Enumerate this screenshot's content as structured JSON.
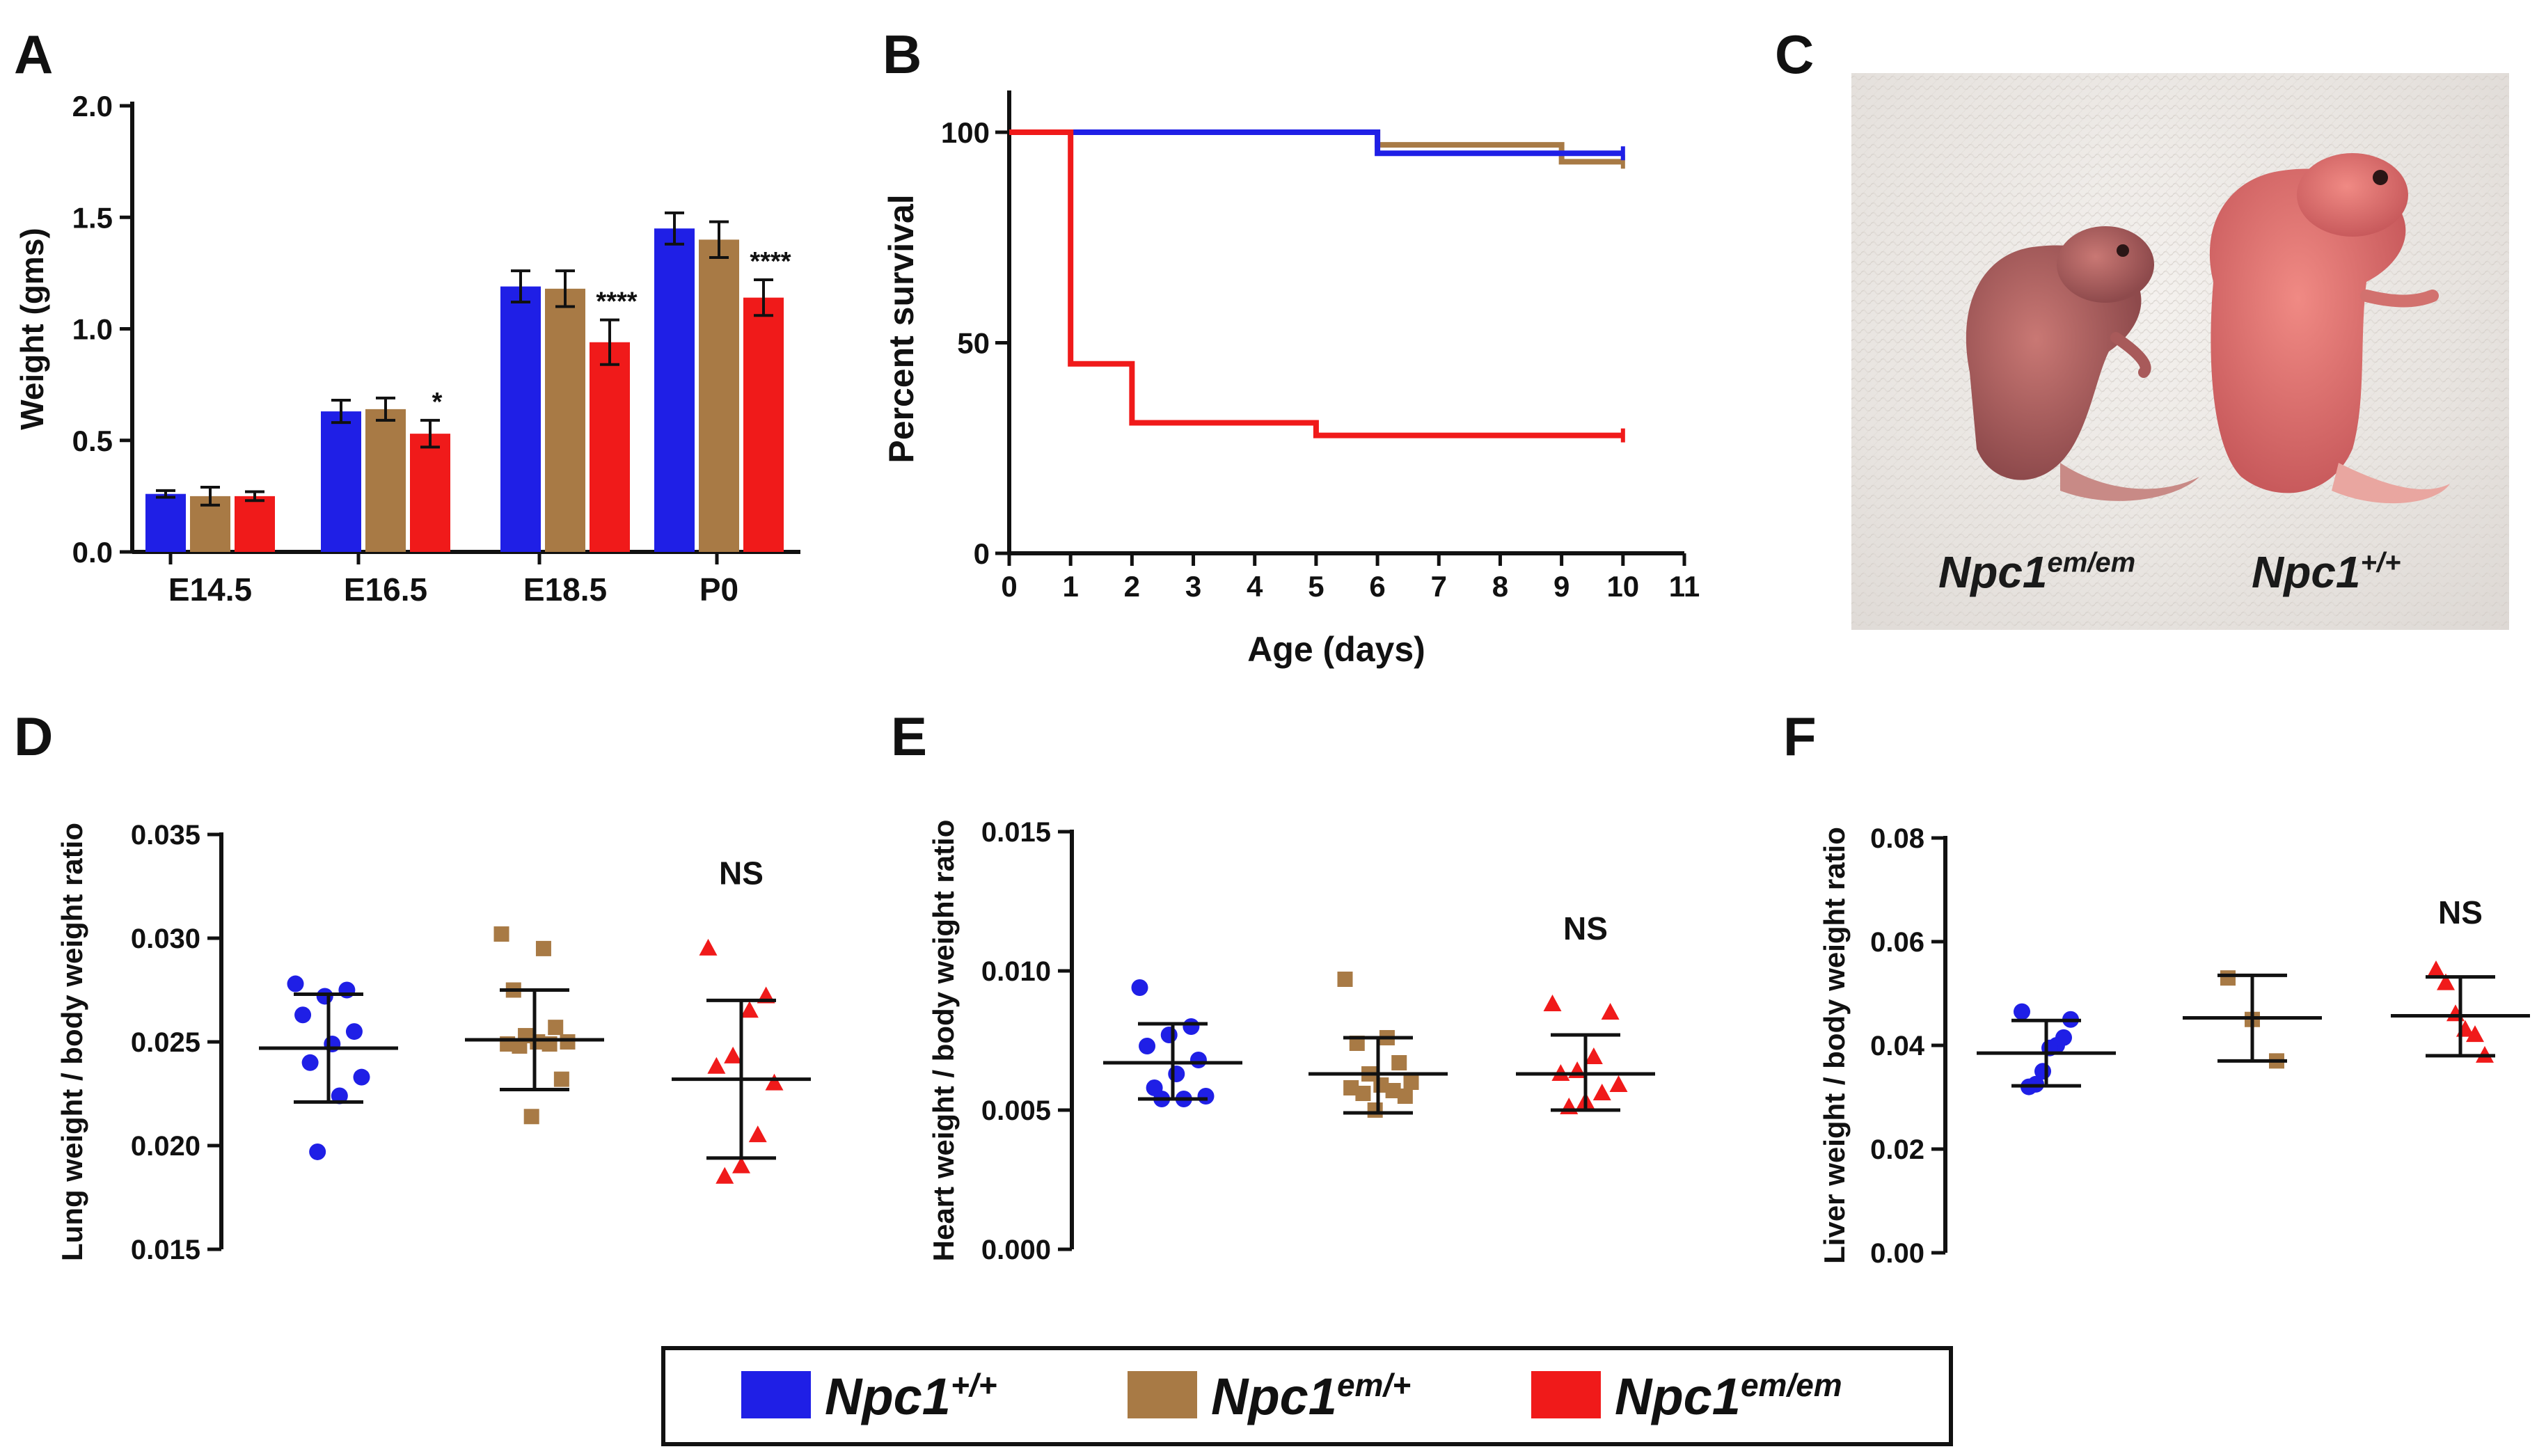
{
  "panels": {
    "A": {
      "letter": "A"
    },
    "B": {
      "letter": "B"
    },
    "C": {
      "letter": "C",
      "labels": [
        "Npc1",
        "em/em",
        "Npc1",
        "+/+"
      ]
    },
    "D": {
      "letter": "D"
    },
    "E": {
      "letter": "E"
    },
    "F": {
      "letter": "F"
    }
  },
  "colors": {
    "wt": "#1f1fe6",
    "het": "#a87a45",
    "hom": "#f01a1a"
  },
  "legend": {
    "items": [
      {
        "gene": "Npc1",
        "sup": "+/+",
        "color_key": "wt"
      },
      {
        "gene": "Npc1",
        "sup": "em/+",
        "color_key": "het"
      },
      {
        "gene": "Npc1",
        "sup": "em/em",
        "color_key": "hom"
      }
    ]
  },
  "chart_data": [
    {
      "id": "A",
      "type": "bar",
      "ylabel": "Weight (gms)",
      "ylim": [
        0,
        2.0
      ],
      "yticks": [
        "0.0",
        "0.5",
        "1.0",
        "1.5",
        "2.0"
      ],
      "categories": [
        "E14.5",
        "E16.5",
        "E18.5",
        "P0"
      ],
      "series": [
        {
          "name": "Npc1+/+",
          "color_key": "wt",
          "values": [
            0.26,
            0.63,
            1.19,
            1.45
          ],
          "errors": [
            0.015,
            0.05,
            0.07,
            0.07
          ]
        },
        {
          "name": "Npc1em/+",
          "color_key": "het",
          "values": [
            0.25,
            0.64,
            1.18,
            1.4
          ],
          "errors": [
            0.04,
            0.05,
            0.08,
            0.08
          ]
        },
        {
          "name": "Npc1em/em",
          "color_key": "hom",
          "values": [
            0.25,
            0.53,
            0.94,
            1.14
          ],
          "errors": [
            0.02,
            0.06,
            0.1,
            0.08
          ]
        }
      ],
      "significance": [
        {
          "category": 1,
          "series": 2,
          "text": "*"
        },
        {
          "category": 2,
          "series": 2,
          "text": "****"
        },
        {
          "category": 3,
          "series": 2,
          "text": "****"
        }
      ]
    },
    {
      "id": "B",
      "type": "line",
      "xlabel": "Age (days)",
      "ylabel": "Percent survival",
      "xlim": [
        0,
        11
      ],
      "ylim": [
        0,
        100
      ],
      "xticks": [
        "0",
        "1",
        "2",
        "3",
        "4",
        "5",
        "6",
        "7",
        "8",
        "9",
        "10",
        "11"
      ],
      "yticks": [
        "0",
        "50",
        "100"
      ],
      "series": [
        {
          "name": "Npc1em/+",
          "color_key": "het",
          "points": [
            [
              0,
              100
            ],
            [
              6,
              100
            ],
            [
              6,
              97
            ],
            [
              9,
              97
            ],
            [
              9,
              93
            ],
            [
              10,
              93
            ]
          ]
        },
        {
          "name": "Npc1+/+",
          "color_key": "wt",
          "points": [
            [
              0,
              100
            ],
            [
              6,
              100
            ],
            [
              6,
              95
            ],
            [
              10,
              95
            ]
          ]
        },
        {
          "name": "Npc1em/em",
          "color_key": "hom",
          "points": [
            [
              0,
              100
            ],
            [
              1,
              100
            ],
            [
              1,
              45
            ],
            [
              2,
              45
            ],
            [
              2,
              31
            ],
            [
              5,
              31
            ],
            [
              5,
              28
            ],
            [
              10,
              28
            ]
          ]
        }
      ]
    },
    {
      "id": "D",
      "type": "scatter",
      "ylabel": "Lung weight / body weight ratio",
      "ylim": [
        0.015,
        0.035
      ],
      "yticks": [
        "0.015",
        "0.020",
        "0.025",
        "0.030",
        "0.035"
      ],
      "groups": [
        {
          "name": "Npc1+/+",
          "color_key": "wt",
          "marker": "circle",
          "mean": 0.0247,
          "sd_low": 0.0221,
          "sd_high": 0.0273,
          "points": [
            0.0278,
            0.0275,
            0.0272,
            0.0263,
            0.0255,
            0.0249,
            0.024,
            0.0233,
            0.0224,
            0.0197
          ]
        },
        {
          "name": "Npc1em/+",
          "color_key": "het",
          "marker": "square",
          "mean": 0.0251,
          "sd_low": 0.0227,
          "sd_high": 0.0275,
          "points": [
            0.0302,
            0.0295,
            0.0275,
            0.0257,
            0.0253,
            0.025,
            0.025,
            0.0249,
            0.0249,
            0.0248,
            0.0232,
            0.0214
          ]
        },
        {
          "name": "Npc1em/em",
          "color_key": "hom",
          "marker": "triangle",
          "mean": 0.0232,
          "sd_low": 0.0194,
          "sd_high": 0.027,
          "points": [
            0.0295,
            0.0272,
            0.0265,
            0.0243,
            0.0238,
            0.023,
            0.0205,
            0.019,
            0.0185
          ]
        }
      ],
      "annotations": [
        {
          "group": 2,
          "text": "NS",
          "y": 0.0331
        }
      ]
    },
    {
      "id": "E",
      "type": "scatter",
      "ylabel": "Heart weight / body weight ratio",
      "ylim": [
        0.0,
        0.015
      ],
      "yticks": [
        "0.000",
        "0.005",
        "0.010",
        "0.015"
      ],
      "groups": [
        {
          "name": "Npc1+/+",
          "color_key": "wt",
          "marker": "circle",
          "mean": 0.0067,
          "sd_low": 0.0054,
          "sd_high": 0.0081,
          "points": [
            0.0094,
            0.008,
            0.0077,
            0.0073,
            0.0068,
            0.0063,
            0.0058,
            0.0055,
            0.0054,
            0.0054
          ]
        },
        {
          "name": "Npc1em/+",
          "color_key": "het",
          "marker": "square",
          "mean": 0.0063,
          "sd_low": 0.0049,
          "sd_high": 0.0076,
          "points": [
            0.0097,
            0.0076,
            0.0074,
            0.0067,
            0.0063,
            0.006,
            0.0059,
            0.0058,
            0.0057,
            0.0056,
            0.0055,
            0.005
          ]
        },
        {
          "name": "Npc1em/em",
          "color_key": "hom",
          "marker": "triangle",
          "mean": 0.0063,
          "sd_low": 0.005,
          "sd_high": 0.0077,
          "points": [
            0.0088,
            0.0085,
            0.0069,
            0.0064,
            0.0063,
            0.0059,
            0.0056,
            0.0053,
            0.0051
          ]
        }
      ],
      "annotations": [
        {
          "group": 2,
          "text": "NS",
          "y": 0.0115
        }
      ]
    },
    {
      "id": "F",
      "type": "scatter",
      "ylabel": "Liver weight / body weight ratio",
      "ylim": [
        0.0,
        0.08
      ],
      "yticks": [
        "0.00",
        "0.02",
        "0.04",
        "0.06",
        "0.08"
      ],
      "groups": [
        {
          "name": "Npc1+/+",
          "color_key": "wt",
          "marker": "circle",
          "mean": 0.0385,
          "sd_low": 0.0322,
          "sd_high": 0.0448,
          "points": [
            0.0465,
            0.045,
            0.0415,
            0.04,
            0.0395,
            0.035,
            0.0325,
            0.032
          ]
        },
        {
          "name": "Npc1em/+",
          "color_key": "het",
          "marker": "square",
          "mean": 0.0453,
          "sd_low": 0.037,
          "sd_high": 0.0535,
          "points": [
            0.053,
            0.045,
            0.037
          ]
        },
        {
          "name": "Npc1em/em",
          "color_key": "hom",
          "marker": "triangle",
          "mean": 0.0457,
          "sd_low": 0.038,
          "sd_high": 0.0532,
          "points": [
            0.0545,
            0.052,
            0.046,
            0.043,
            0.042,
            0.038
          ]
        }
      ],
      "annotations": [
        {
          "group": 2,
          "text": "NS",
          "y": 0.0655
        }
      ]
    }
  ]
}
